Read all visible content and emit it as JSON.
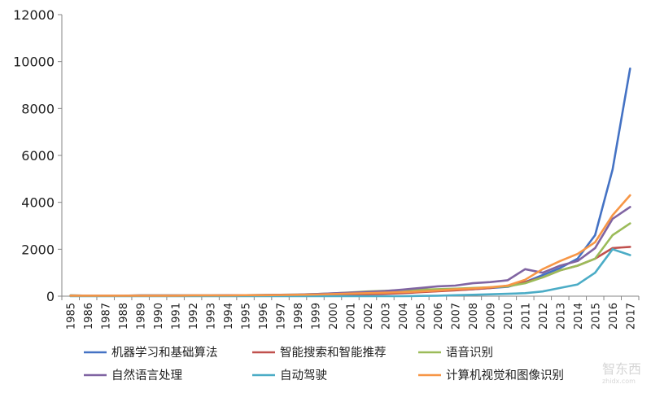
{
  "watermark": {
    "logo_text": "智东西",
    "sub_text": "zhidx.com"
  },
  "chart_data": {
    "type": "line",
    "title": "",
    "xlabel": "",
    "ylabel": "",
    "ylim": [
      0,
      12000
    ],
    "y_ticks": [
      0,
      2000,
      4000,
      6000,
      8000,
      10000,
      12000
    ],
    "grid": false,
    "legend_position": "bottom",
    "x": [
      "1985",
      "1986",
      "1987",
      "1988",
      "1989",
      "1990",
      "1991",
      "1992",
      "1993",
      "1994",
      "1995",
      "1996",
      "1997",
      "1998",
      "1999",
      "2000",
      "2001",
      "2002",
      "2003",
      "2004",
      "2005",
      "2006",
      "2007",
      "2008",
      "2009",
      "2010",
      "2011",
      "2012",
      "2013",
      "2014",
      "2015",
      "2016",
      "2017"
    ],
    "series": [
      {
        "name": "机器学习和基础算法",
        "color": "#4472c4",
        "values": [
          30,
          20,
          10,
          10,
          20,
          20,
          20,
          20,
          20,
          30,
          30,
          30,
          40,
          50,
          60,
          80,
          100,
          120,
          140,
          160,
          190,
          220,
          260,
          300,
          350,
          400,
          600,
          900,
          1200,
          1600,
          2600,
          5400,
          9700
        ]
      },
      {
        "name": "智能搜索和智能推荐",
        "color": "#c0504d",
        "values": [
          10,
          10,
          10,
          10,
          10,
          10,
          10,
          10,
          10,
          10,
          10,
          20,
          20,
          20,
          30,
          40,
          60,
          80,
          100,
          130,
          170,
          210,
          250,
          300,
          350,
          450,
          600,
          800,
          1100,
          1300,
          1600,
          2050,
          2100
        ]
      },
      {
        "name": "语音识别",
        "color": "#9bbb59",
        "values": [
          30,
          20,
          20,
          20,
          30,
          30,
          30,
          30,
          30,
          40,
          40,
          50,
          60,
          70,
          90,
          120,
          160,
          200,
          230,
          260,
          280,
          300,
          320,
          350,
          380,
          420,
          550,
          800,
          1100,
          1300,
          1600,
          2600,
          3100
        ]
      },
      {
        "name": "自然语言处理",
        "color": "#8064a2",
        "values": [
          20,
          20,
          20,
          20,
          30,
          30,
          30,
          30,
          30,
          40,
          40,
          50,
          60,
          70,
          90,
          120,
          150,
          180,
          220,
          280,
          350,
          420,
          450,
          550,
          600,
          680,
          1150,
          1000,
          1300,
          1500,
          2050,
          3300,
          3800
        ]
      },
      {
        "name": "自动驾驶",
        "color": "#4bacc6",
        "values": [
          0,
          0,
          0,
          0,
          0,
          0,
          0,
          0,
          0,
          0,
          0,
          0,
          0,
          0,
          0,
          0,
          0,
          0,
          0,
          0,
          10,
          20,
          40,
          60,
          80,
          100,
          130,
          200,
          350,
          500,
          1000,
          2000,
          1750
        ]
      },
      {
        "name": "计算机视觉和图像识别",
        "color": "#f79646",
        "values": [
          20,
          20,
          20,
          20,
          20,
          20,
          20,
          30,
          30,
          30,
          40,
          40,
          50,
          60,
          70,
          90,
          110,
          130,
          150,
          170,
          200,
          240,
          290,
          330,
          380,
          450,
          700,
          1150,
          1500,
          1800,
          2300,
          3450,
          4300
        ]
      }
    ]
  }
}
